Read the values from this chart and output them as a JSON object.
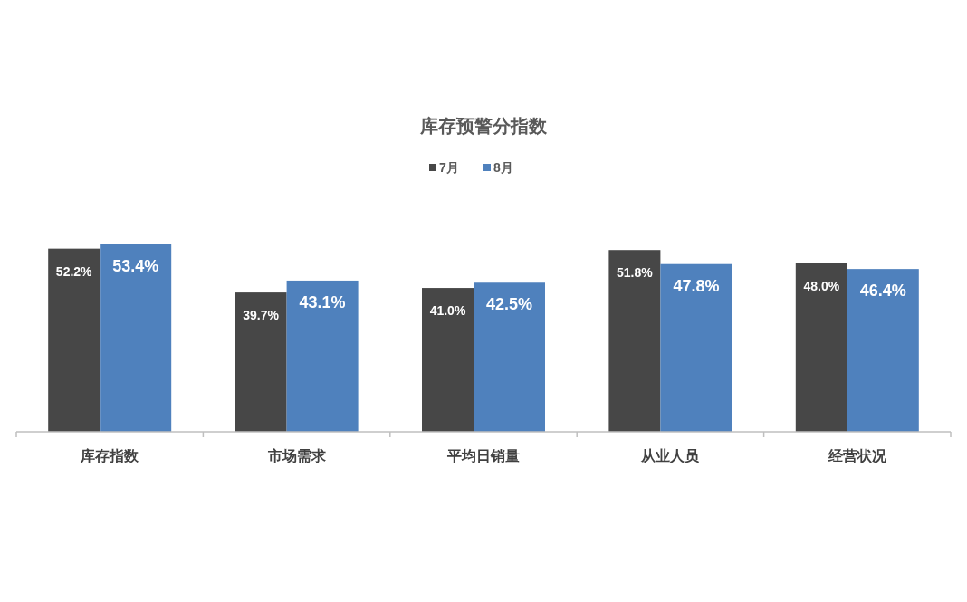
{
  "chart_data": {
    "type": "bar",
    "title": "库存预警分指数",
    "categories": [
      "库存指数",
      "市场需求",
      "平均日销量",
      "从业人员",
      "经营状况"
    ],
    "series": [
      {
        "name": "7月",
        "color": "#474747",
        "values": [
          52.2,
          39.7,
          41.0,
          51.8,
          48.0
        ],
        "value_labels": [
          "52.2%",
          "39.7%",
          "41.0%",
          "51.8%",
          "48.0%"
        ]
      },
      {
        "name": "8月",
        "color": "#4f81bd",
        "values": [
          53.4,
          43.1,
          42.5,
          47.8,
          46.4
        ],
        "value_labels": [
          "53.4%",
          "43.1%",
          "42.5%",
          "47.8%",
          "46.4%"
        ]
      }
    ],
    "legend": "top"
  }
}
